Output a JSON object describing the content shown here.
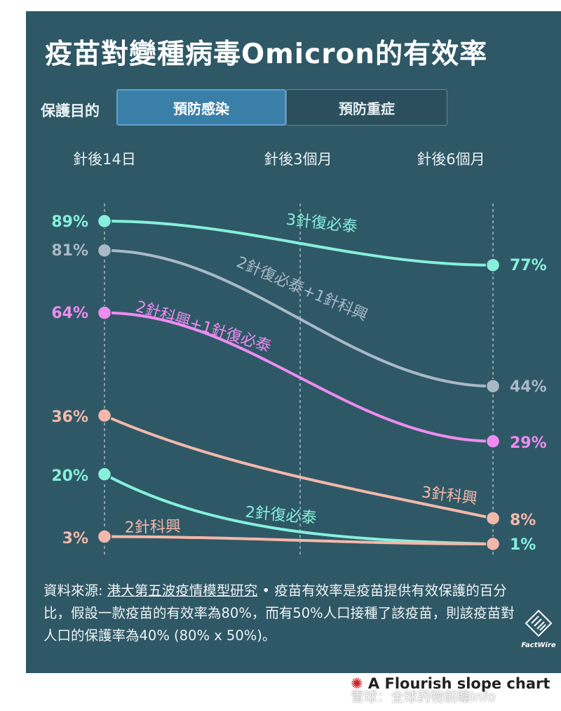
{
  "title": "疫苗對變種病毒Omicron的有效率",
  "filter": {
    "label": "保護目的",
    "tabs": [
      "預防感染",
      "預防重症"
    ],
    "active": 0
  },
  "colors": {
    "background": "#2f5866",
    "sinovac3": "#86f0dc",
    "sinovac2_biontech1": "#a9b9c8",
    "coronavac2_biontech1": "#ee8cf0",
    "coronavac3": "#f4b8aa",
    "biontech2": "#86f0dc",
    "coronavac2": "#f4b8aa"
  },
  "chart_data": {
    "type": "line",
    "x": [
      "針後14日",
      "針後3個月",
      "針後6個月"
    ],
    "ylim": [
      0,
      100
    ],
    "series": [
      {
        "name": "3針復必泰",
        "values": [
          89,
          null,
          77
        ],
        "start_label": "89%",
        "end_label": "77%"
      },
      {
        "name": "2針復必泰+1針科興",
        "values": [
          81,
          null,
          44
        ],
        "start_label": "81%",
        "end_label": "44%"
      },
      {
        "name": "2針科興+1針復必泰",
        "values": [
          64,
          null,
          29
        ],
        "start_label": "64%",
        "end_label": "29%"
      },
      {
        "name": "3針科興",
        "values": [
          36,
          null,
          8
        ],
        "start_label": "36%",
        "end_label": "8%"
      },
      {
        "name": "2針復必泰",
        "values": [
          20,
          null,
          1
        ],
        "start_label": "20%",
        "end_label": "1%"
      },
      {
        "name": "2針科興",
        "values": [
          3,
          null,
          1
        ],
        "start_label": "3%",
        "end_label": ""
      }
    ]
  },
  "footnote": {
    "source_prefix": "資料來源: ",
    "source_link": "港大第五波疫情模型研究",
    "text": "• 疫苗有效率是疫苗提供有效保護的百分比，假設一款疫苗的有效率為80%，而有50%人口接種了該疫苗，則該疫苗對人口的保護率為40% (80% x 50%)。"
  },
  "brand": "FactWire",
  "flourish_label": "A Flourish slope chart",
  "watermark": "雪球：全球药物前瞻info"
}
